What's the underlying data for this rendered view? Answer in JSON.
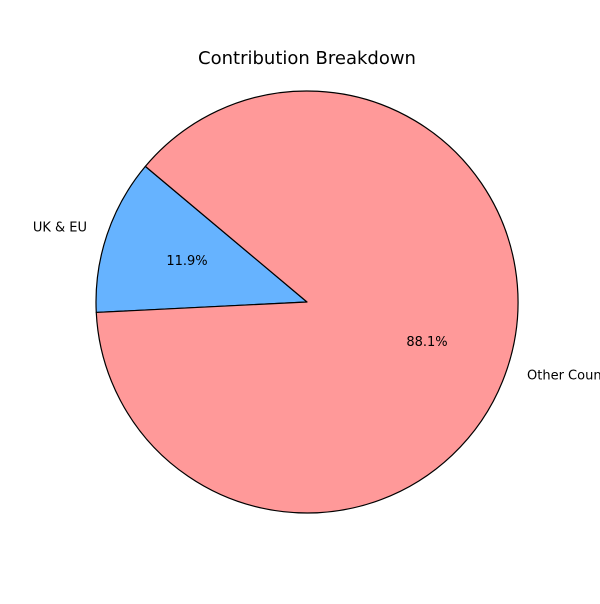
{
  "chart_data": {
    "type": "pie",
    "title": "Contribution Breakdown",
    "slices": [
      {
        "label": "UK & EU",
        "value": 11.9,
        "pct_label": "11.9%",
        "color": "#66b3ff"
      },
      {
        "label": "Other Countries",
        "value": 88.1,
        "pct_label": "88.1%",
        "color": "#ff9999"
      }
    ],
    "edge_color": "#000000",
    "start_angle_deg": 140,
    "direction": "counterclockwise",
    "legend": "none"
  }
}
